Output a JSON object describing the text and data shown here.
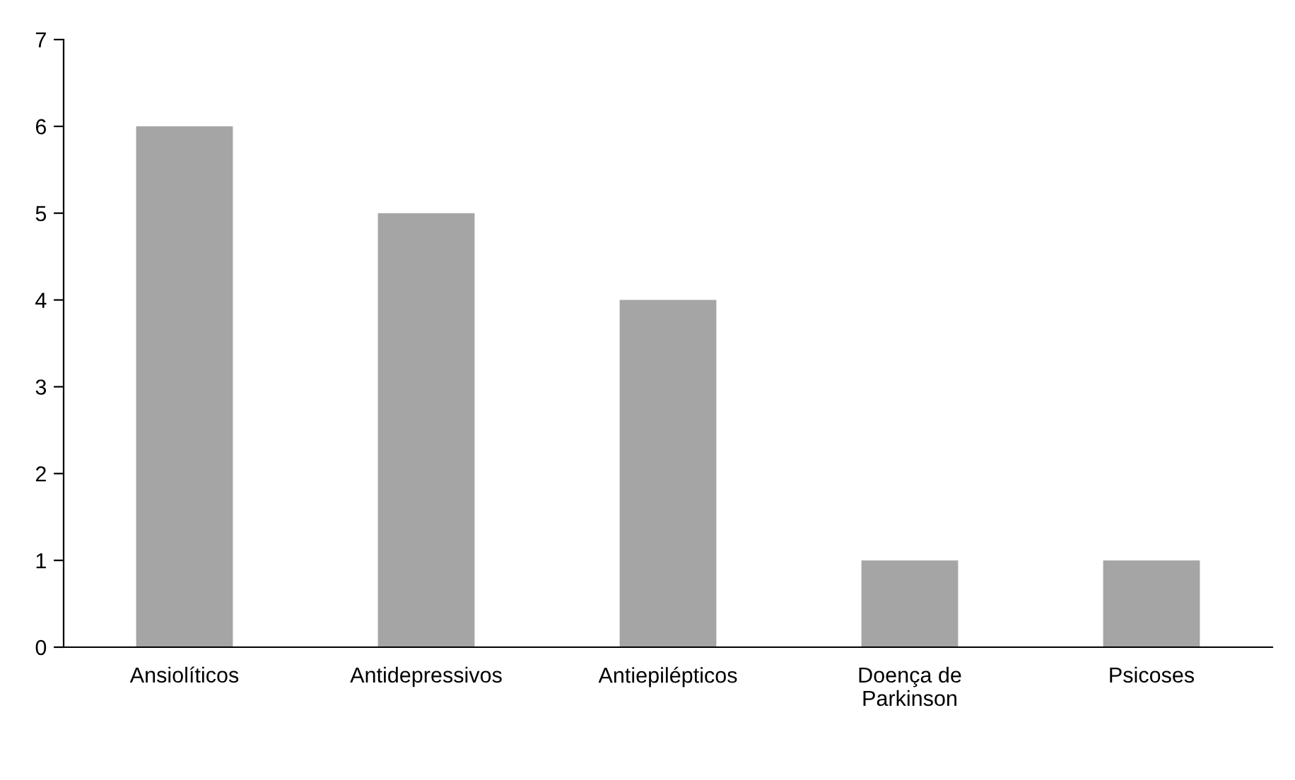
{
  "chart_data": {
    "type": "bar",
    "categories": [
      "Ansiolíticos",
      "Antidepressivos",
      "Antiepilépticos",
      "Doença de\nParkinson",
      "Psicoses"
    ],
    "values": [
      6,
      5,
      4,
      1,
      1
    ],
    "color": "#a5a5a5",
    "ylim": [
      0,
      7
    ],
    "yticks": [
      0,
      1,
      2,
      3,
      4,
      5,
      6,
      7
    ],
    "grid": false,
    "legend": false
  }
}
